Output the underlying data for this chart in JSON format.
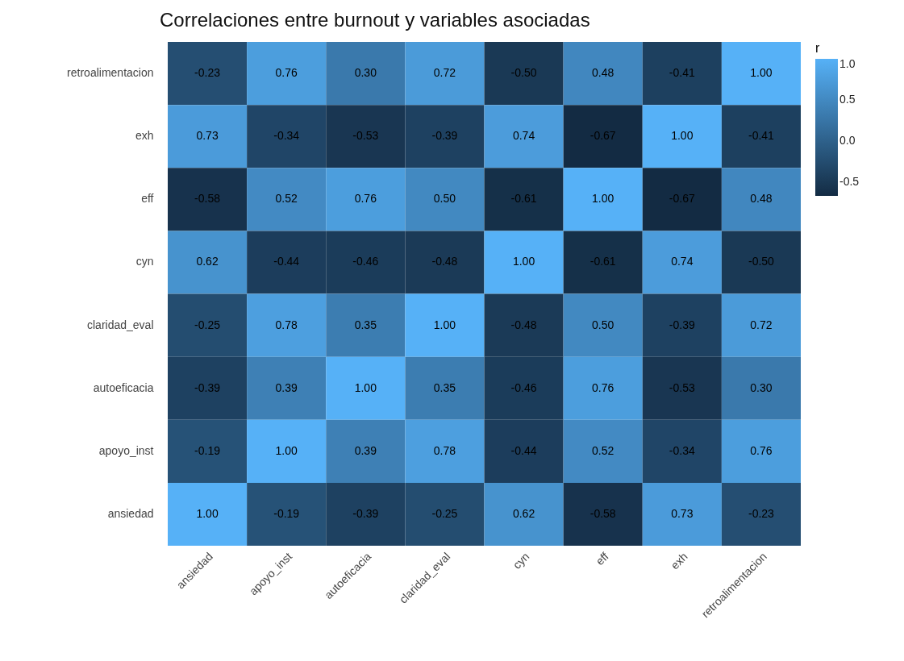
{
  "chart_data": {
    "type": "heatmap",
    "title": "Correlaciones entre burnout y variables asociadas",
    "categories": [
      "ansiedad",
      "apoyo_inst",
      "autoeficacia",
      "claridad_eval",
      "cyn",
      "eff",
      "exh",
      "retroalimentacion"
    ],
    "y_categories": [
      "retroalimentacion",
      "exh",
      "eff",
      "cyn",
      "claridad_eval",
      "autoeficacia",
      "apoyo_inst",
      "ansiedad"
    ],
    "cells": [
      [
        -0.23,
        0.76,
        0.3,
        0.72,
        -0.5,
        0.48,
        -0.41,
        1.0
      ],
      [
        0.73,
        -0.34,
        -0.53,
        -0.39,
        0.74,
        -0.67,
        1.0,
        -0.41
      ],
      [
        -0.58,
        0.52,
        0.76,
        0.5,
        -0.61,
        1.0,
        -0.67,
        0.48
      ],
      [
        0.62,
        -0.44,
        -0.46,
        -0.48,
        1.0,
        -0.61,
        0.74,
        -0.5
      ],
      [
        -0.25,
        0.78,
        0.35,
        1.0,
        -0.48,
        0.5,
        -0.39,
        0.72
      ],
      [
        -0.39,
        0.39,
        1.0,
        0.35,
        -0.46,
        0.76,
        -0.53,
        0.3
      ],
      [
        -0.19,
        1.0,
        0.39,
        0.78,
        -0.44,
        0.52,
        -0.34,
        0.76
      ],
      [
        1.0,
        -0.19,
        -0.39,
        -0.25,
        0.62,
        -0.58,
        0.73,
        -0.23
      ]
    ],
    "cell_labels": [
      [
        "-0.23",
        "0.76",
        "0.30",
        "0.72",
        "-0.50",
        "0.48",
        "-0.41",
        "1.00"
      ],
      [
        "0.73",
        "-0.34",
        "-0.53",
        "-0.39",
        "0.74",
        "-0.67",
        "1.00",
        "-0.41"
      ],
      [
        "-0.58",
        "0.52",
        "0.76",
        "0.50",
        "-0.61",
        "1.00",
        "-0.67",
        "0.48"
      ],
      [
        "0.62",
        "-0.44",
        "-0.46",
        "-0.48",
        "1.00",
        "-0.61",
        "0.74",
        "-0.50"
      ],
      [
        "-0.25",
        "0.78",
        "0.35",
        "1.00",
        "-0.48",
        "0.50",
        "-0.39",
        "0.72"
      ],
      [
        "-0.39",
        "0.39",
        "1.00",
        "0.35",
        "-0.46",
        "0.76",
        "-0.53",
        "0.30"
      ],
      [
        "-0.19",
        "1.00",
        "0.39",
        "0.78",
        "-0.44",
        "0.52",
        "-0.34",
        "0.76"
      ],
      [
        "1.00",
        "-0.19",
        "-0.39",
        "-0.25",
        "0.62",
        "-0.58",
        "0.73",
        "-0.23"
      ]
    ],
    "legend_title": "r",
    "clim": [
      -0.67,
      1.0
    ],
    "cticks": [
      -0.5,
      {
        "value": 0,
        "label": "0.0"
      },
      0.5,
      {
        "value": 1,
        "label": "1.0"
      }
    ]
  }
}
